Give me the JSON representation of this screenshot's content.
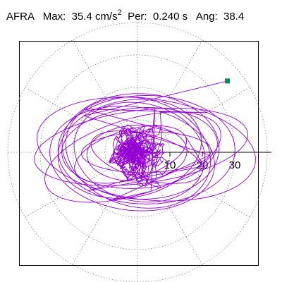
{
  "header": {
    "station": "AFRA",
    "max_label": "Max:",
    "max_value": "35.4",
    "max_unit": "cm/s",
    "max_unit_exp": "2",
    "per_label": "Per:",
    "per_value": "0.240 s",
    "ang_label": "Ang:",
    "ang_value": "38.4"
  },
  "chart_data": {
    "type": "polar-particle-motion",
    "rings": [
      10,
      20,
      30,
      40
    ],
    "radial_ticks": [
      "10",
      "20",
      "30"
    ],
    "spoke_angles_deg": [
      0,
      30,
      60,
      90,
      120,
      150,
      180,
      210,
      240,
      270,
      300,
      330
    ],
    "grid_style": "dotted",
    "trace_color": "#9400D3",
    "marker_color": "#008B5A",
    "max_value": 35.4,
    "max_angle_deg": 38.4,
    "trace_extent": {
      "x": [
        -33,
        35
      ],
      "y": [
        -19,
        23
      ]
    }
  }
}
